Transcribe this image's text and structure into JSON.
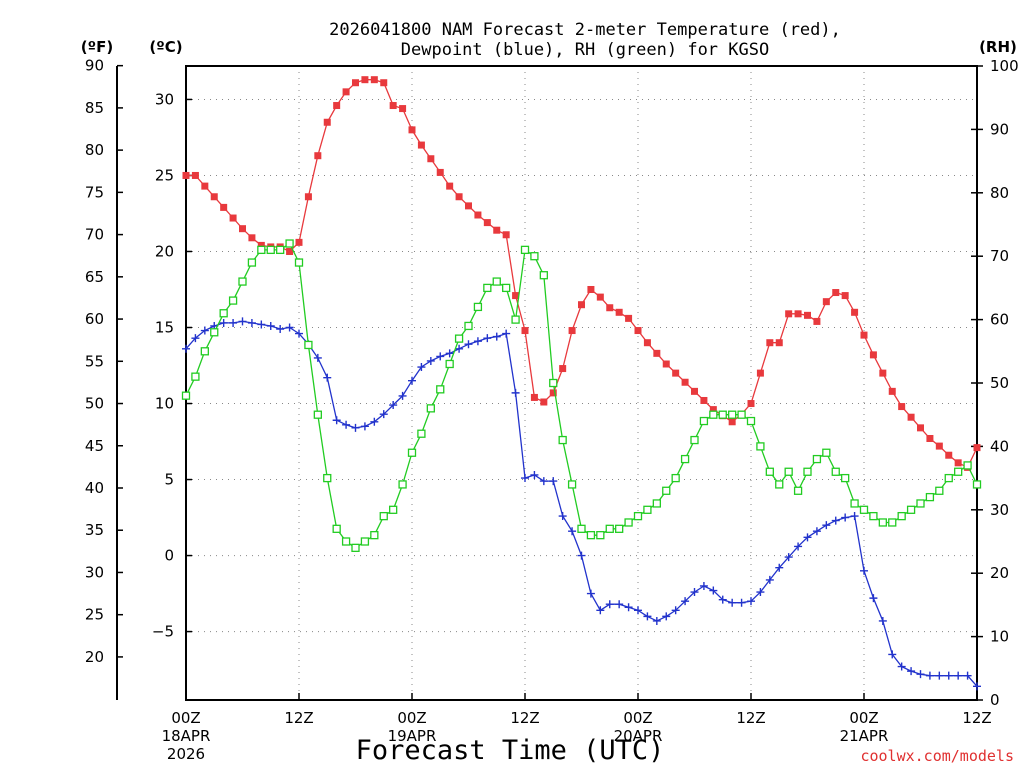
{
  "chart_data": {
    "type": "line",
    "title_line1": "2026041800 NAM Forecast 2-meter Temperature (red),",
    "title_line2": "Dewpoint (blue), RH (green) for KGSO",
    "xlabel": "Forecast Time (UTC)",
    "unit_left_f": "(ºF)",
    "unit_left_c": "(ºC)",
    "unit_right": "(RH)",
    "credit": "coolwx.com/models",
    "x_range_hours": [
      0,
      84
    ],
    "celsius_range": [
      -9.5,
      32.2
    ],
    "rh_range": [
      0,
      100
    ],
    "fahrenheit_ticks": [
      "90",
      "85",
      "80",
      "75",
      "70",
      "65",
      "60",
      "55",
      "50",
      "45",
      "40",
      "35",
      "30",
      "25",
      "20"
    ],
    "celsius_ticks": [
      "30",
      "25",
      "20",
      "15",
      "10",
      "5",
      "0",
      "−5"
    ],
    "rh_ticks": [
      "100",
      "90",
      "80",
      "70",
      "60",
      "50",
      "40",
      "30",
      "20",
      "10",
      "0"
    ],
    "x_ticks": [
      {
        "hour": 0,
        "line1": "00Z",
        "line2": "18APR",
        "line3": "2026"
      },
      {
        "hour": 12,
        "line1": "12Z",
        "line2": "",
        "line3": ""
      },
      {
        "hour": 24,
        "line1": "00Z",
        "line2": "19APR",
        "line3": ""
      },
      {
        "hour": 36,
        "line1": "12Z",
        "line2": "",
        "line3": ""
      },
      {
        "hour": 48,
        "line1": "00Z",
        "line2": "20APR",
        "line3": ""
      },
      {
        "hour": 60,
        "line1": "12Z",
        "line2": "",
        "line3": ""
      },
      {
        "hour": 72,
        "line1": "00Z",
        "line2": "21APR",
        "line3": ""
      },
      {
        "hour": 84,
        "line1": "12Z",
        "line2": "",
        "line3": ""
      }
    ],
    "series": [
      {
        "name": "Temperature",
        "color": "#e8393d",
        "marker": "square",
        "axis": "celsius",
        "values": [
          [
            0,
            25.0
          ],
          [
            1,
            25.0
          ],
          [
            2,
            24.3
          ],
          [
            3,
            23.6
          ],
          [
            4,
            22.9
          ],
          [
            5,
            22.2
          ],
          [
            6,
            21.5
          ],
          [
            7,
            20.9
          ],
          [
            8,
            20.4
          ],
          [
            9,
            20.3
          ],
          [
            10,
            20.3
          ],
          [
            11,
            20.0
          ],
          [
            12,
            20.6
          ],
          [
            13,
            23.6
          ],
          [
            14,
            26.3
          ],
          [
            15,
            28.5
          ],
          [
            16,
            29.6
          ],
          [
            17,
            30.5
          ],
          [
            18,
            31.1
          ],
          [
            19,
            31.3
          ],
          [
            20,
            31.3
          ],
          [
            21,
            31.1
          ],
          [
            22,
            29.6
          ],
          [
            23,
            29.4
          ],
          [
            24,
            28.0
          ],
          [
            25,
            27.0
          ],
          [
            26,
            26.1
          ],
          [
            27,
            25.2
          ],
          [
            28,
            24.3
          ],
          [
            29,
            23.6
          ],
          [
            30,
            23.0
          ],
          [
            31,
            22.4
          ],
          [
            32,
            21.9
          ],
          [
            33,
            21.4
          ],
          [
            34,
            21.1
          ],
          [
            35,
            17.1
          ],
          [
            36,
            14.8
          ],
          [
            37,
            10.4
          ],
          [
            38,
            10.1
          ],
          [
            39,
            10.7
          ],
          [
            40,
            12.3
          ],
          [
            41,
            14.8
          ],
          [
            42,
            16.5
          ],
          [
            43,
            17.5
          ],
          [
            44,
            17.0
          ],
          [
            45,
            16.3
          ],
          [
            46,
            16.0
          ],
          [
            47,
            15.6
          ],
          [
            48,
            14.8
          ],
          [
            49,
            14.0
          ],
          [
            50,
            13.3
          ],
          [
            51,
            12.6
          ],
          [
            52,
            12.0
          ],
          [
            53,
            11.4
          ],
          [
            54,
            10.8
          ],
          [
            55,
            10.2
          ],
          [
            56,
            9.6
          ],
          [
            57,
            9.2
          ],
          [
            58,
            8.8
          ],
          [
            59,
            9.3
          ],
          [
            60,
            10.0
          ],
          [
            61,
            12.0
          ],
          [
            62,
            14.0
          ],
          [
            63,
            14.0
          ],
          [
            64,
            15.9
          ],
          [
            65,
            15.9
          ],
          [
            66,
            15.8
          ],
          [
            67,
            15.4
          ],
          [
            68,
            16.7
          ],
          [
            69,
            17.3
          ],
          [
            70,
            17.1
          ],
          [
            71,
            16.0
          ],
          [
            72,
            14.5
          ],
          [
            73,
            13.2
          ],
          [
            74,
            12.0
          ],
          [
            75,
            10.8
          ],
          [
            76,
            9.8
          ],
          [
            77,
            9.1
          ],
          [
            78,
            8.4
          ],
          [
            79,
            7.7
          ],
          [
            80,
            7.2
          ],
          [
            81,
            6.6
          ],
          [
            82,
            6.1
          ],
          [
            83,
            5.8
          ],
          [
            84,
            7.1
          ]
        ]
      },
      {
        "name": "Dewpoint",
        "color": "#2233cc",
        "marker": "plus",
        "axis": "celsius",
        "values": [
          [
            0,
            13.6
          ],
          [
            1,
            14.3
          ],
          [
            2,
            14.8
          ],
          [
            3,
            15.1
          ],
          [
            4,
            15.3
          ],
          [
            5,
            15.3
          ],
          [
            6,
            15.4
          ],
          [
            7,
            15.3
          ],
          [
            8,
            15.2
          ],
          [
            9,
            15.1
          ],
          [
            10,
            14.9
          ],
          [
            11,
            15.0
          ],
          [
            12,
            14.6
          ],
          [
            13,
            13.9
          ],
          [
            14,
            13.0
          ],
          [
            15,
            11.7
          ],
          [
            16,
            8.9
          ],
          [
            17,
            8.6
          ],
          [
            18,
            8.4
          ],
          [
            19,
            8.5
          ],
          [
            20,
            8.8
          ],
          [
            21,
            9.3
          ],
          [
            22,
            9.9
          ],
          [
            23,
            10.5
          ],
          [
            24,
            11.5
          ],
          [
            25,
            12.4
          ],
          [
            26,
            12.8
          ],
          [
            27,
            13.1
          ],
          [
            28,
            13.3
          ],
          [
            29,
            13.6
          ],
          [
            30,
            13.9
          ],
          [
            31,
            14.1
          ],
          [
            32,
            14.3
          ],
          [
            33,
            14.4
          ],
          [
            34,
            14.6
          ],
          [
            35,
            10.7
          ],
          [
            36,
            5.1
          ],
          [
            37,
            5.3
          ],
          [
            38,
            4.9
          ],
          [
            39,
            4.9
          ],
          [
            40,
            2.6
          ],
          [
            41,
            1.6
          ],
          [
            42,
            0.0
          ],
          [
            43,
            -2.5
          ],
          [
            44,
            -3.6
          ],
          [
            45,
            -3.2
          ],
          [
            46,
            -3.2
          ],
          [
            47,
            -3.4
          ],
          [
            48,
            -3.6
          ],
          [
            49,
            -4.0
          ],
          [
            50,
            -4.3
          ],
          [
            51,
            -4.0
          ],
          [
            52,
            -3.6
          ],
          [
            53,
            -3.0
          ],
          [
            54,
            -2.4
          ],
          [
            55,
            -2.0
          ],
          [
            56,
            -2.3
          ],
          [
            57,
            -2.9
          ],
          [
            58,
            -3.1
          ],
          [
            59,
            -3.1
          ],
          [
            60,
            -3.0
          ],
          [
            61,
            -2.4
          ],
          [
            62,
            -1.6
          ],
          [
            63,
            -0.8
          ],
          [
            64,
            -0.1
          ],
          [
            65,
            0.6
          ],
          [
            66,
            1.2
          ],
          [
            67,
            1.6
          ],
          [
            68,
            2.0
          ],
          [
            69,
            2.3
          ],
          [
            70,
            2.5
          ],
          [
            71,
            2.6
          ],
          [
            72,
            -1.0
          ],
          [
            73,
            -2.8
          ],
          [
            74,
            -4.3
          ],
          [
            75,
            -6.5
          ],
          [
            76,
            -7.3
          ],
          [
            77,
            -7.6
          ],
          [
            78,
            -7.8
          ],
          [
            79,
            -7.9
          ],
          [
            80,
            -7.9
          ],
          [
            81,
            -7.9
          ],
          [
            82,
            -7.9
          ],
          [
            83,
            -7.9
          ],
          [
            84,
            -8.6
          ]
        ]
      },
      {
        "name": "RH",
        "color": "#22cc22",
        "marker": "open-square",
        "axis": "rh",
        "values": [
          [
            0,
            48
          ],
          [
            1,
            51
          ],
          [
            2,
            55
          ],
          [
            3,
            58
          ],
          [
            4,
            61
          ],
          [
            5,
            63
          ],
          [
            6,
            66
          ],
          [
            7,
            69
          ],
          [
            8,
            71
          ],
          [
            9,
            71
          ],
          [
            10,
            71
          ],
          [
            11,
            72
          ],
          [
            12,
            69
          ],
          [
            13,
            56
          ],
          [
            14,
            45
          ],
          [
            15,
            35
          ],
          [
            16,
            27
          ],
          [
            17,
            25
          ],
          [
            18,
            24
          ],
          [
            19,
            25
          ],
          [
            20,
            26
          ],
          [
            21,
            29
          ],
          [
            22,
            30
          ],
          [
            23,
            34
          ],
          [
            24,
            39
          ],
          [
            25,
            42
          ],
          [
            26,
            46
          ],
          [
            27,
            49
          ],
          [
            28,
            53
          ],
          [
            29,
            57
          ],
          [
            30,
            59
          ],
          [
            31,
            62
          ],
          [
            32,
            65
          ],
          [
            33,
            66
          ],
          [
            34,
            65
          ],
          [
            35,
            60
          ],
          [
            36,
            71
          ],
          [
            37,
            70
          ],
          [
            38,
            67
          ],
          [
            39,
            50
          ],
          [
            40,
            41
          ],
          [
            41,
            34
          ],
          [
            42,
            27
          ],
          [
            43,
            26
          ],
          [
            44,
            26
          ],
          [
            45,
            27
          ],
          [
            46,
            27
          ],
          [
            47,
            28
          ],
          [
            48,
            29
          ],
          [
            49,
            30
          ],
          [
            50,
            31
          ],
          [
            51,
            33
          ],
          [
            52,
            35
          ],
          [
            53,
            38
          ],
          [
            54,
            41
          ],
          [
            55,
            44
          ],
          [
            56,
            45
          ],
          [
            57,
            45
          ],
          [
            58,
            45
          ],
          [
            59,
            45
          ],
          [
            60,
            44
          ],
          [
            61,
            40
          ],
          [
            62,
            36
          ],
          [
            63,
            34
          ],
          [
            64,
            36
          ],
          [
            65,
            33
          ],
          [
            66,
            36
          ],
          [
            67,
            38
          ],
          [
            68,
            39
          ],
          [
            69,
            36
          ],
          [
            70,
            35
          ],
          [
            71,
            31
          ],
          [
            72,
            30
          ],
          [
            73,
            29
          ],
          [
            74,
            28
          ],
          [
            75,
            28
          ],
          [
            76,
            29
          ],
          [
            77,
            30
          ],
          [
            78,
            31
          ],
          [
            79,
            32
          ],
          [
            80,
            33
          ],
          [
            81,
            35
          ],
          [
            82,
            36
          ],
          [
            83,
            37
          ],
          [
            84,
            34
          ]
        ]
      }
    ]
  }
}
